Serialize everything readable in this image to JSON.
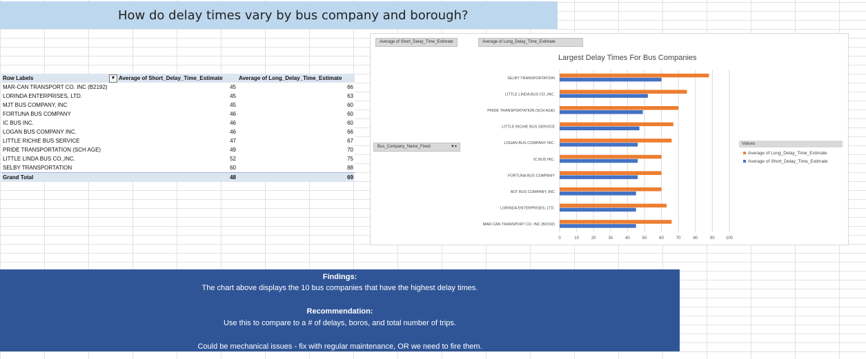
{
  "title": "How do delay times vary by bus company and borough?",
  "pivot": {
    "headers": {
      "row_labels": "Row Labels",
      "short": "Average of Short_Delay_Time_Estimate",
      "long": "Average of Long_Delay_Time_Estimate"
    },
    "rows": [
      {
        "company": "MAR-CAN TRANSPORT CO. INC (B2192)",
        "short": "45",
        "long": "66"
      },
      {
        "company": "LORINDA ENTERPRISES, LTD.",
        "short": "45",
        "long": "63"
      },
      {
        "company": "MJT BUS COMPANY, INC",
        "short": "45",
        "long": "60"
      },
      {
        "company": "FORTUNA BUS COMPANY",
        "short": "46",
        "long": "60"
      },
      {
        "company": "IC BUS INC.",
        "short": "46",
        "long": "60"
      },
      {
        "company": "LOGAN BUS COMPANY INC.",
        "short": "46",
        "long": "66"
      },
      {
        "company": "LITTLE RICHIE BUS SERVICE",
        "short": "47",
        "long": "67"
      },
      {
        "company": "PRIDE TRANSPORTATION (SCH AGE)",
        "short": "49",
        "long": "70"
      },
      {
        "company": "LITTLE LINDA BUS CO.,INC.",
        "short": "52",
        "long": "75"
      },
      {
        "company": "SELBY TRANSPORTATION",
        "short": "60",
        "long": "88"
      }
    ],
    "total": {
      "label": "Grand Total",
      "short": "48",
      "long": "69"
    }
  },
  "chart": {
    "field_buttons": [
      "Average of Short_Delay_Time_Estimate",
      "Average of Long_Delay_Time_Estimate"
    ],
    "axis_field_button": "Bus_Company_Name_Fixed",
    "legend_title": "Values"
  },
  "chart_data": {
    "type": "bar",
    "orientation": "horizontal",
    "title": "Largest Delay Times For Bus Companies",
    "categories": [
      "SELBY TRANSPORTATION",
      "LITTLE LINDA BUS CO.,INC.",
      "PRIDE TRANSPORTATION (SCH AGE)",
      "LITTLE RICHIE BUS SERVICE",
      "LOGAN BUS COMPANY INC.",
      "IC BUS INC.",
      "FORTUNA BUS COMPANY",
      "MJT BUS COMPANY, INC",
      "LORINDA ENTERPRISES, LTD.",
      "MAR-CAN TRANSPORT CO. INC (B2192)"
    ],
    "series": [
      {
        "name": "Average of Long_Delay_Time_Estimate",
        "color": "#ed7d31",
        "values": [
          88,
          75,
          70,
          67,
          66,
          60,
          60,
          60,
          63,
          66
        ]
      },
      {
        "name": "Average of Short_Delay_Time_Estimate",
        "color": "#4472c4",
        "values": [
          60,
          52,
          49,
          47,
          46,
          46,
          46,
          45,
          45,
          45
        ]
      }
    ],
    "xlim": [
      0,
      100
    ],
    "xticks": [
      "0",
      "10",
      "20",
      "30",
      "40",
      "50",
      "60",
      "70",
      "80",
      "90",
      "100"
    ],
    "grid": true,
    "legend_position": "right"
  },
  "findings": {
    "heading": "Findings:",
    "text": "The chart above displays the 10 bus companies that have the highest delay times.",
    "rec_heading": "Recommendation:",
    "rec_text": "Use this to compare to a # of delays, boros, and total number of trips.",
    "note": "Could be mechanical issues - fix with regular maintenance, OR we need to fire them."
  }
}
